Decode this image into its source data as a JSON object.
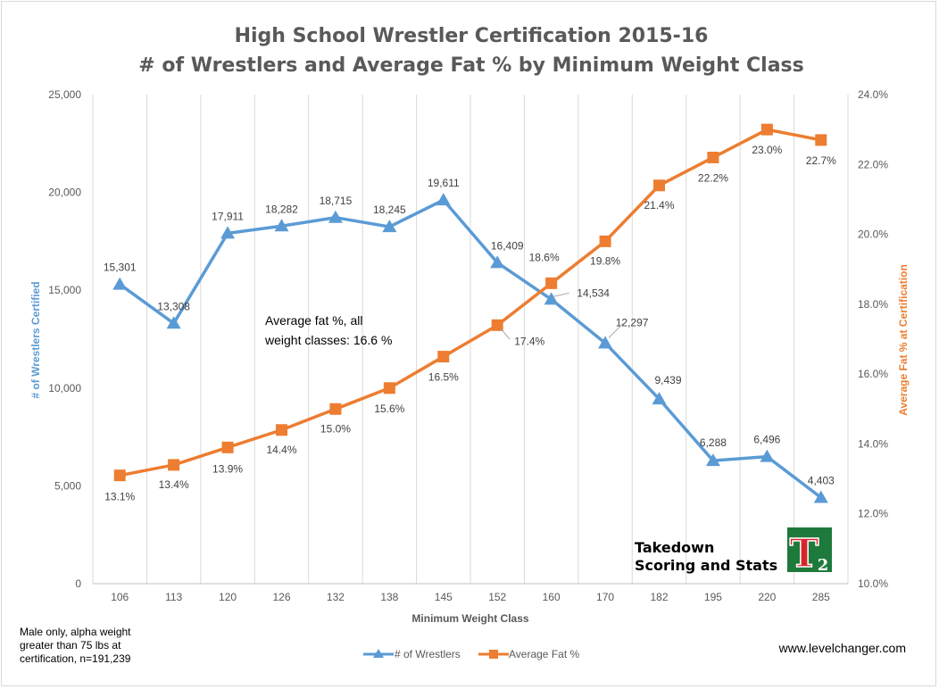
{
  "chart_data": {
    "type": "line",
    "title": "High School Wrestler Certification 2015-16",
    "subtitle": "# of Wrestlers and Average Fat % by Minimum Weight Class",
    "xlabel": "Minimum Weight Class",
    "ylabel_left": "# of Wrestlers Certified",
    "ylabel_right": "Average Fat % at Certification",
    "categories": [
      "106",
      "113",
      "120",
      "126",
      "132",
      "138",
      "145",
      "152",
      "160",
      "170",
      "182",
      "195",
      "220",
      "285"
    ],
    "ylim_left": [
      0,
      25000
    ],
    "ylim_right": [
      10.0,
      24.0
    ],
    "yticks_left": [
      "0",
      "5,000",
      "10,000",
      "15,000",
      "20,000",
      "25,000"
    ],
    "yticks_right": [
      "10.0%",
      "12.0%",
      "14.0%",
      "16.0%",
      "18.0%",
      "20.0%",
      "22.0%",
      "24.0%"
    ],
    "grid": "vertical",
    "legend_position": "bottom",
    "series": [
      {
        "name": "# of Wrestlers",
        "axis": "left",
        "marker": "triangle",
        "color": "#5b9bd5",
        "values": [
          15301,
          13308,
          17911,
          18282,
          18715,
          18245,
          19611,
          16409,
          14534,
          12297,
          9439,
          6288,
          6496,
          4403
        ],
        "labels": [
          "15,301",
          "13,308",
          "17,911",
          "18,282",
          "18,715",
          "18,245",
          "19,611",
          "16,409",
          "14,534",
          "12,297",
          "9,439",
          "6,288",
          "6,496",
          "4,403"
        ]
      },
      {
        "name": "Average Fat %",
        "axis": "right",
        "marker": "square",
        "color": "#ed7d31",
        "values": [
          13.1,
          13.4,
          13.9,
          14.4,
          15.0,
          15.6,
          16.5,
          17.4,
          18.6,
          19.8,
          21.4,
          22.2,
          23.0,
          22.7
        ],
        "labels": [
          "13.1%",
          "13.4%",
          "13.9%",
          "14.4%",
          "15.0%",
          "15.6%",
          "16.5%",
          "17.4%",
          "18.6%",
          "19.8%",
          "21.4%",
          "22.2%",
          "23.0%",
          "22.7%"
        ]
      }
    ],
    "annotation": [
      "Average fat %, all",
      "weight classes: 16.6 %"
    ]
  },
  "footnote": [
    "Male only, alpha weight",
    "greater than 75 lbs at",
    "certification, n=191,239"
  ],
  "brand": {
    "line1": "Takedown",
    "line2": "Scoring and Stats",
    "logo_letter": "T",
    "logo_sub": "2"
  },
  "website": "www.levelchanger.com",
  "colors": {
    "wrestlers": "#5b9bd5",
    "fat": "#ed7d31",
    "logo_green": "#1e7a3c",
    "logo_red": "#d7262b"
  }
}
